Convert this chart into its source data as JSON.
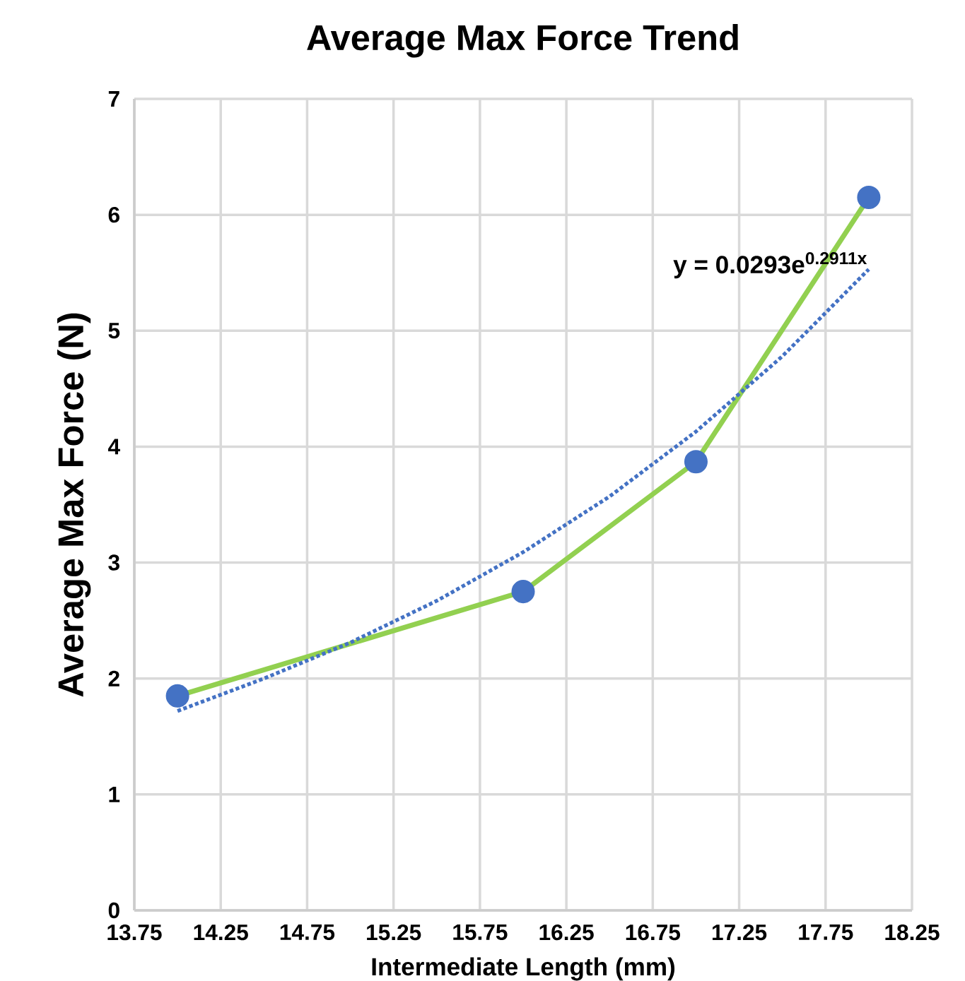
{
  "chart_data": {
    "type": "line",
    "title": "Average Max Force Trend",
    "xlabel": "Intermediate Length (mm)",
    "ylabel": "Average Max Force (N)",
    "xlim": [
      13.75,
      18.25
    ],
    "xticks": [
      13.75,
      14.25,
      14.75,
      15.25,
      15.75,
      16.25,
      16.75,
      17.25,
      17.75,
      18.25
    ],
    "ylim": [
      0,
      7
    ],
    "yticks": [
      0,
      1,
      2,
      3,
      4,
      5,
      6,
      7
    ],
    "grid": true,
    "annotations": [
      "y = 0.0293e$^{0.2911x}$"
    ],
    "series": [
      {
        "x": [
          14,
          16,
          17,
          18
        ],
        "values": [
          1.85,
          2.75,
          3.87,
          6.15
        ],
        "color": "#92d050",
        "colors": [
          "#4472c4",
          "#4472c4",
          "#4472c4",
          "#4472c4"
        ],
        "marker": "circle",
        "line_style": "solid"
      },
      {
        "x": [
          14,
          14.5,
          15,
          15.5,
          16,
          16.5,
          17,
          17.5,
          18
        ],
        "values": [
          1.72,
          2.0,
          2.31,
          2.67,
          3.09,
          3.57,
          4.13,
          4.78,
          5.53
        ],
        "color": "#4472c4",
        "marker": "none",
        "line_style": "dotted"
      }
    ]
  }
}
